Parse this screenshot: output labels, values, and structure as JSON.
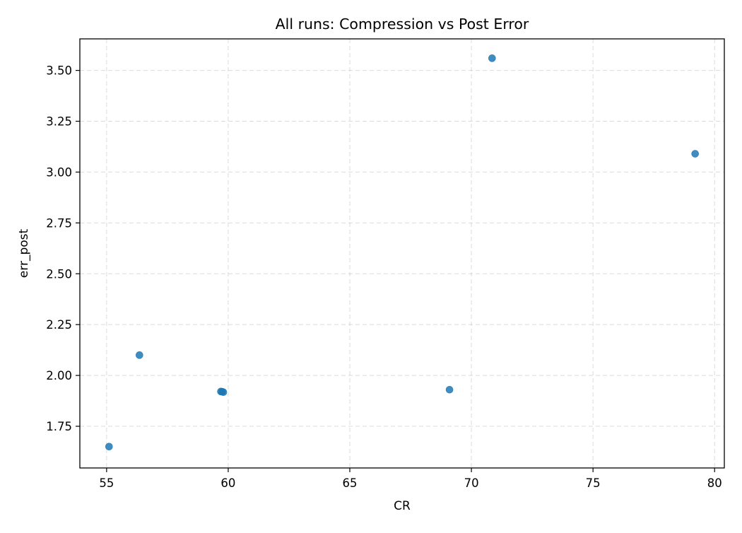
{
  "chart_data": {
    "type": "scatter",
    "title": "All runs: Compression vs Post Error",
    "xlabel": "CR",
    "ylabel": "err_post",
    "xlim": [
      53.9,
      80.4
    ],
    "ylim": [
      1.545,
      3.655
    ],
    "xticks": [
      55,
      60,
      65,
      70,
      75,
      80
    ],
    "xtick_labels": [
      "55",
      "60",
      "65",
      "70",
      "75",
      "80"
    ],
    "yticks": [
      1.75,
      2.0,
      2.25,
      2.5,
      2.75,
      3.0,
      3.25,
      3.5
    ],
    "ytick_labels": [
      "1.75",
      "2.00",
      "2.25",
      "2.50",
      "2.75",
      "3.00",
      "3.25",
      "3.50"
    ],
    "grid": true,
    "point_color": "#1f77b4",
    "series": [
      {
        "points": [
          {
            "x": 55.1,
            "y": 1.65
          },
          {
            "x": 56.35,
            "y": 2.1
          },
          {
            "x": 59.75,
            "y": 1.92
          },
          {
            "x": 59.8,
            "y": 1.918
          },
          {
            "x": 59.7,
            "y": 1.921
          },
          {
            "x": 69.1,
            "y": 1.93
          },
          {
            "x": 70.85,
            "y": 3.56
          },
          {
            "x": 79.2,
            "y": 3.09
          }
        ]
      }
    ]
  }
}
